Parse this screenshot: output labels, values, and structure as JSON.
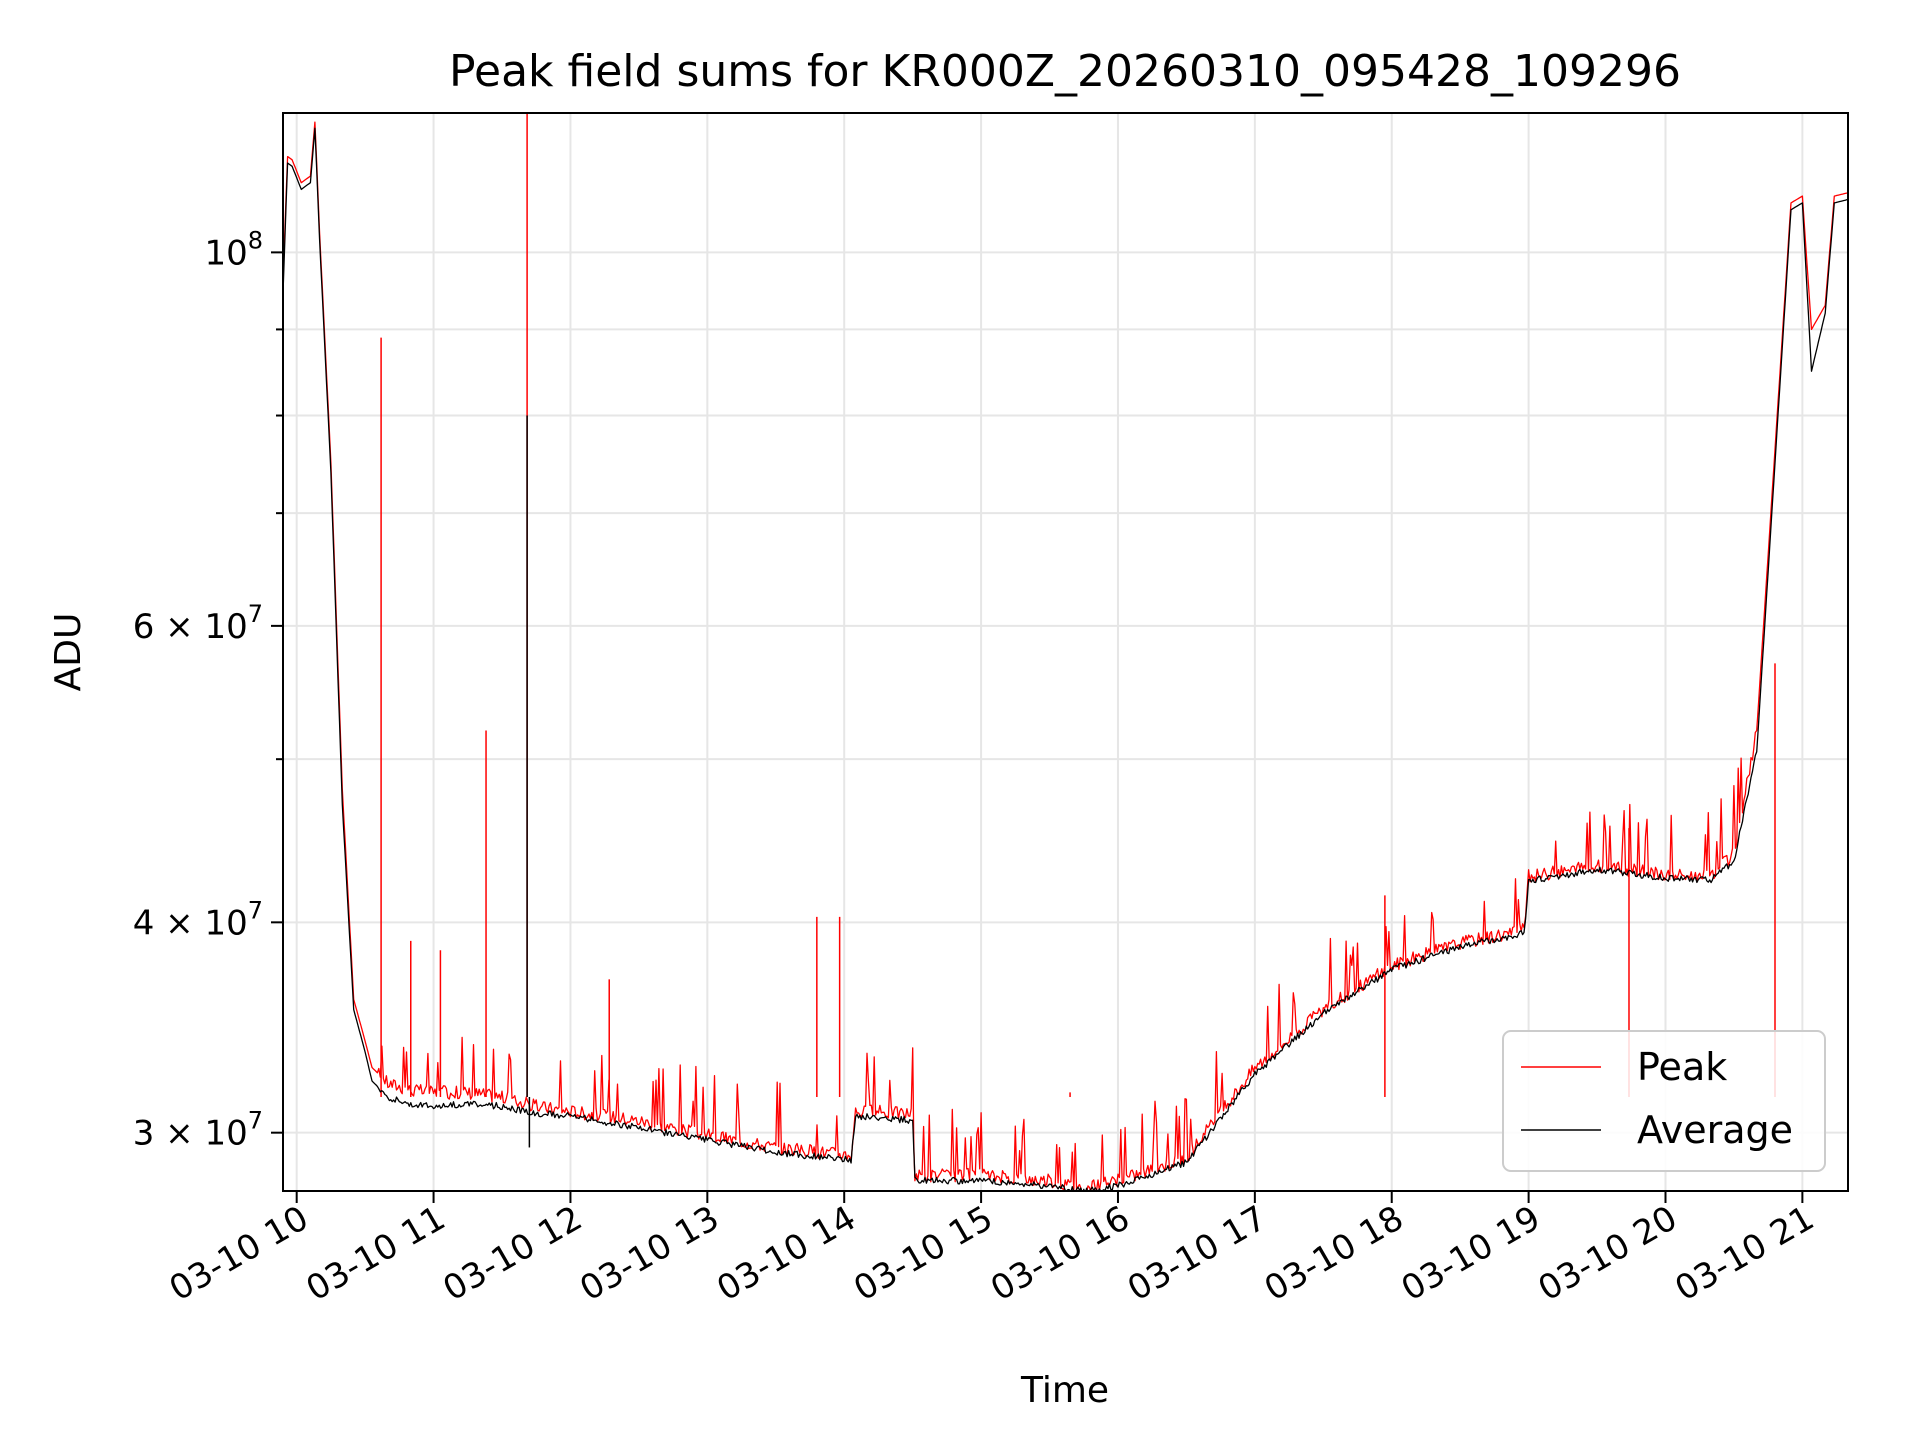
{
  "chart_data": {
    "type": "line",
    "title": "Peak field sums for KR000Z_20260310_095428_109296",
    "xlabel": "Time",
    "ylabel": "ADU",
    "yscale": "log",
    "grid": true,
    "legend_position": "lower-right",
    "xlim": [
      "2026-03-10 09:54",
      "2026-03-10 21:20"
    ],
    "ylim": [
      27700000,
      121000000
    ],
    "x_tick_labels": [
      "03-10 10",
      "03-10 11",
      "03-10 12",
      "03-10 13",
      "03-10 14",
      "03-10 15",
      "03-10 16",
      "03-10 17",
      "03-10 18",
      "03-10 19",
      "03-10 20",
      "03-10 21"
    ],
    "x_tick_times": [
      "2026-03-10 10:00",
      "2026-03-10 11:00",
      "2026-03-10 12:00",
      "2026-03-10 13:00",
      "2026-03-10 14:00",
      "2026-03-10 15:00",
      "2026-03-10 16:00",
      "2026-03-10 17:00",
      "2026-03-10 18:00",
      "2026-03-10 19:00",
      "2026-03-10 20:00",
      "2026-03-10 21:00"
    ],
    "y_major_ticks": [
      {
        "value": 30000000,
        "mantissa": "3",
        "exponent": "7"
      },
      {
        "value": 40000000,
        "mantissa": "4",
        "exponent": "7"
      },
      {
        "value": 60000000,
        "mantissa": "6",
        "exponent": "7"
      },
      {
        "value": 100000000,
        "mantissa": "",
        "exponent": "8"
      }
    ],
    "y_minor_ticks": [
      50000000,
      70000000,
      80000000,
      90000000
    ],
    "colors": {
      "peak": "#ff0000",
      "average": "#000000"
    },
    "series": [
      {
        "name": "Peak",
        "color": "#ff0000",
        "x": [
          "2026-03-10 09:54",
          "2026-03-10 09:56",
          "2026-03-10 09:58",
          "2026-03-10 10:02",
          "2026-03-10 10:06",
          "2026-03-10 10:08",
          "2026-03-10 10:10",
          "2026-03-10 10:15",
          "2026-03-10 10:20",
          "2026-03-10 10:25",
          "2026-03-10 10:30",
          "2026-03-10 10:33",
          "2026-03-10 10:36",
          "2026-03-10 10:40",
          "2026-03-10 10:50",
          "2026-03-10 11:00",
          "2026-03-10 11:15",
          "2026-03-10 11:30",
          "2026-03-10 11:45",
          "2026-03-10 12:00",
          "2026-03-10 12:30",
          "2026-03-10 13:00",
          "2026-03-10 13:30",
          "2026-03-10 14:03",
          "2026-03-10 14:05",
          "2026-03-10 14:30",
          "2026-03-10 14:31",
          "2026-03-10 15:00",
          "2026-03-10 15:30",
          "2026-03-10 15:45",
          "2026-03-10 16:00",
          "2026-03-10 16:30",
          "2026-03-10 17:00",
          "2026-03-10 17:30",
          "2026-03-10 18:00",
          "2026-03-10 18:30",
          "2026-03-10 18:58",
          "2026-03-10 19:00",
          "2026-03-10 19:30",
          "2026-03-10 20:00",
          "2026-03-10 20:20",
          "2026-03-10 20:30",
          "2026-03-10 20:40",
          "2026-03-10 20:55",
          "2026-03-10 21:00",
          "2026-03-10 21:04",
          "2026-03-10 21:10",
          "2026-03-10 21:14",
          "2026-03-10 21:20"
        ],
        "y": [
          96000000,
          114000000,
          113500000,
          110000000,
          111000000,
          119500000,
          103000000,
          75000000,
          48000000,
          36000000,
          34000000,
          32800000,
          32500000,
          32100000,
          31800000,
          31700000,
          31700000,
          31500000,
          31100000,
          30900000,
          30500000,
          29900000,
          29400000,
          29100000,
          30900000,
          30800000,
          28300000,
          28300000,
          28100000,
          27800000,
          28100000,
          29000000,
          32800000,
          35500000,
          37700000,
          38900000,
          39600000,
          42600000,
          43200000,
          42700000,
          42600000,
          44000000,
          52000000,
          107000000,
          108000000,
          90000000,
          93000000,
          108000000,
          108500000
        ],
        "spikes": [
          {
            "x": "2026-03-10 10:37",
            "y": 89000000
          },
          {
            "x": "2026-03-10 11:23",
            "y": 52000000
          },
          {
            "x": "2026-03-10 11:41",
            "y": 121000000
          },
          {
            "x": "2026-03-10 10:50",
            "y": 39000000
          },
          {
            "x": "2026-03-10 11:03",
            "y": 38500000
          },
          {
            "x": "2026-03-10 12:17",
            "y": 37000000
          },
          {
            "x": "2026-03-10 13:48",
            "y": 40300000
          },
          {
            "x": "2026-03-10 13:58",
            "y": 40300000
          },
          {
            "x": "2026-03-10 15:39",
            "y": 31700000
          },
          {
            "x": "2026-03-10 17:57",
            "y": 41500000
          },
          {
            "x": "2026-03-10 19:44",
            "y": 45500000
          },
          {
            "x": "2026-03-10 20:48",
            "y": 57000000
          }
        ]
      },
      {
        "name": "Average",
        "color": "#000000",
        "x": [
          "2026-03-10 09:54",
          "2026-03-10 09:56",
          "2026-03-10 09:58",
          "2026-03-10 10:02",
          "2026-03-10 10:06",
          "2026-03-10 10:08",
          "2026-03-10 10:10",
          "2026-03-10 10:15",
          "2026-03-10 10:20",
          "2026-03-10 10:25",
          "2026-03-10 10:30",
          "2026-03-10 10:33",
          "2026-03-10 10:36",
          "2026-03-10 10:40",
          "2026-03-10 10:50",
          "2026-03-10 11:00",
          "2026-03-10 11:15",
          "2026-03-10 11:30",
          "2026-03-10 11:45",
          "2026-03-10 12:00",
          "2026-03-10 12:30",
          "2026-03-10 13:00",
          "2026-03-10 13:30",
          "2026-03-10 14:03",
          "2026-03-10 14:05",
          "2026-03-10 14:30",
          "2026-03-10 14:31",
          "2026-03-10 15:00",
          "2026-03-10 15:30",
          "2026-03-10 15:45",
          "2026-03-10 16:00",
          "2026-03-10 16:30",
          "2026-03-10 17:00",
          "2026-03-10 17:30",
          "2026-03-10 18:00",
          "2026-03-10 18:30",
          "2026-03-10 18:58",
          "2026-03-10 19:00",
          "2026-03-10 19:30",
          "2026-03-10 20:00",
          "2026-03-10 20:20",
          "2026-03-10 20:30",
          "2026-03-10 20:40",
          "2026-03-10 20:55",
          "2026-03-10 21:00",
          "2026-03-10 21:04",
          "2026-03-10 21:10",
          "2026-03-10 21:14",
          "2026-03-10 21:20"
        ],
        "y": [
          94500000,
          113000000,
          112500000,
          109000000,
          110000000,
          118500000,
          102000000,
          74000000,
          47000000,
          35500000,
          33500000,
          32200000,
          31900000,
          31500000,
          31200000,
          31100000,
          31200000,
          31100000,
          30800000,
          30700000,
          30200000,
          29700000,
          29200000,
          28900000,
          30700000,
          30500000,
          28100000,
          28100000,
          27900000,
          27700000,
          27900000,
          28800000,
          32500000,
          35300000,
          37500000,
          38700000,
          39400000,
          42300000,
          43000000,
          42500000,
          42400000,
          43500000,
          50500000,
          106000000,
          107000000,
          85000000,
          92000000,
          107000000,
          107500000
        ],
        "spikes": [
          {
            "x": "2026-03-10 11:41",
            "y": 80000000
          },
          {
            "x": "2026-03-10 11:42",
            "y": 29400000
          }
        ]
      }
    ]
  }
}
